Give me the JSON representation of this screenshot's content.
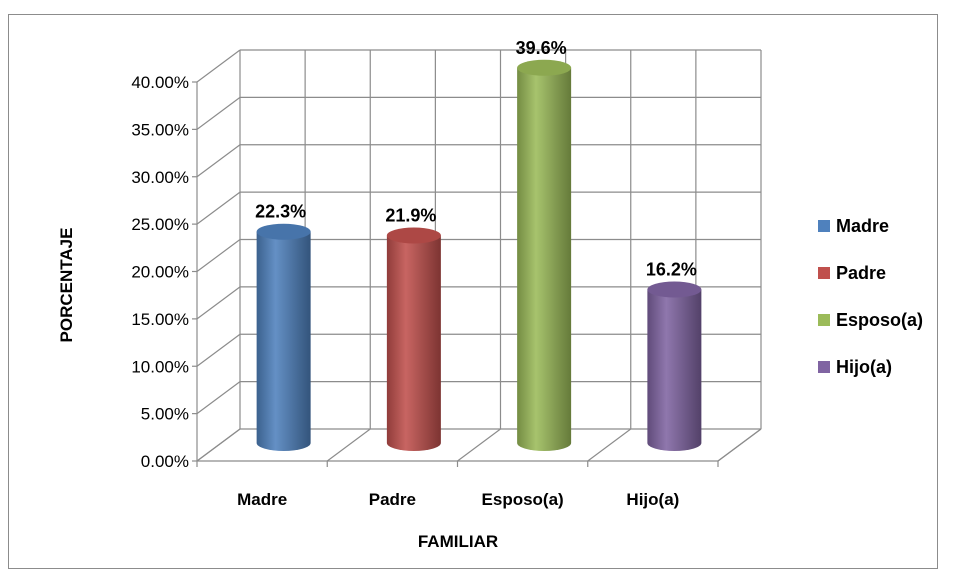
{
  "chart_data": {
    "type": "bar",
    "style": "3d-cylinder",
    "title": "",
    "xlabel": "FAMILIAR",
    "ylabel": "PORCENTAJE",
    "ylim": [
      0,
      40
    ],
    "y_tick_step": 5,
    "y_tick_labels": [
      "0.00%",
      "5.00%",
      "10.00%",
      "15.00%",
      "20.00%",
      "25.00%",
      "30.00%",
      "35.00%",
      "40.00%"
    ],
    "categories": [
      "Madre",
      "Padre",
      "Esposo(a)",
      "Hijo(a)"
    ],
    "values": [
      22.3,
      21.9,
      39.6,
      16.2
    ],
    "data_labels": [
      "22.3%",
      "21.9%",
      "39.6%",
      "16.2%"
    ],
    "colors": [
      "#4f81bd",
      "#c0504d",
      "#9bbb59",
      "#8064a2"
    ],
    "legend": {
      "position": "right",
      "entries": [
        "Madre",
        "Padre",
        "Esposo(a)",
        "Hijo(a)"
      ]
    },
    "grid": true
  }
}
